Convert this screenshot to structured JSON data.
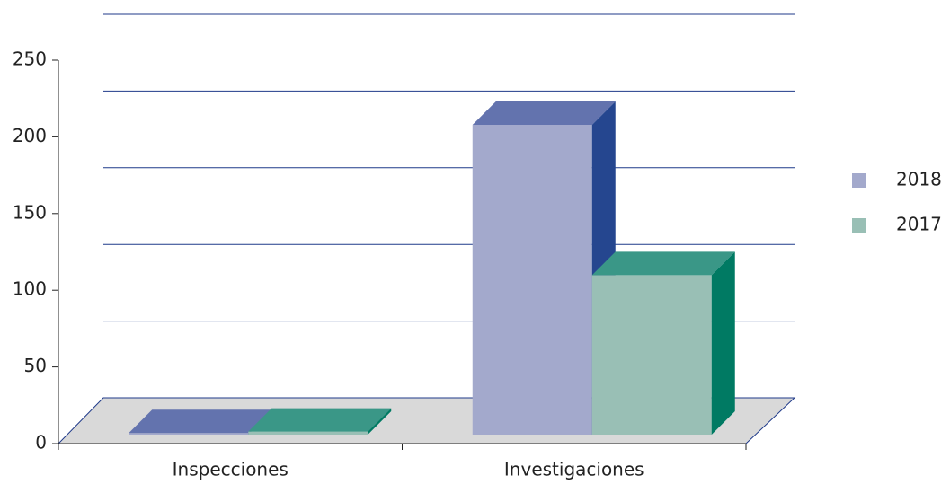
{
  "chart_data": {
    "type": "bar3d",
    "categories": [
      "Inspecciones",
      "Investigaciones"
    ],
    "series": [
      {
        "name": "2018",
        "color": "#a3a9cc",
        "top_color": "#6373ae",
        "side_color": "#25468f",
        "values": [
          1,
          202
        ]
      },
      {
        "name": "2017",
        "color": "#99bfb5",
        "top_color": "#3a9787",
        "side_color": "#007a63",
        "values": [
          2,
          104
        ]
      }
    ],
    "ylim": [
      0,
      250
    ],
    "yticks": [
      0,
      50,
      100,
      150,
      200,
      250
    ],
    "grid": true,
    "legend": "right"
  }
}
